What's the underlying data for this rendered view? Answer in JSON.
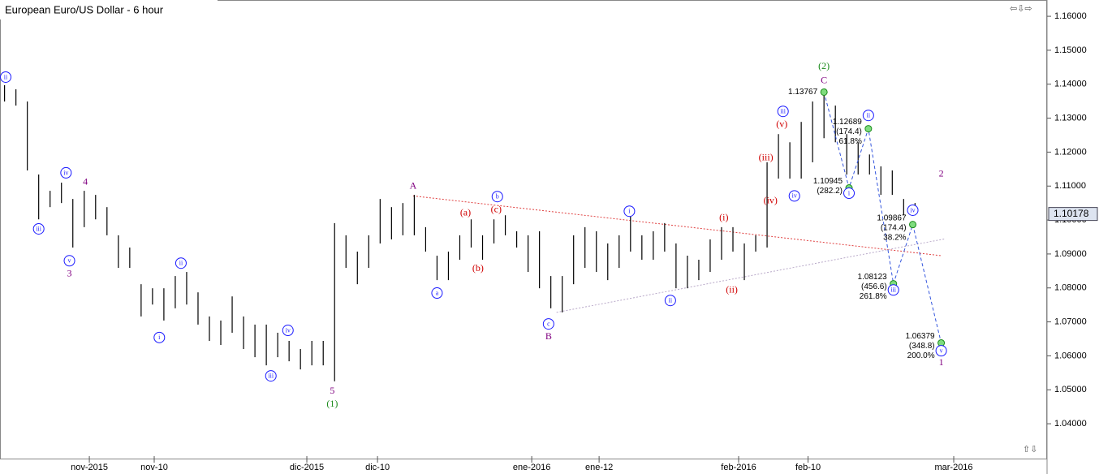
{
  "chart_data": {
    "type": "range_bar",
    "title": "European Euro/US Dollar - 6 hour",
    "color": "#000000",
    "xlim": [
      -0.4,
      91.6
    ],
    "ylim": [
      1.0295,
      1.1648
    ],
    "xticks": [
      {
        "value": 7.45,
        "label": "nov-2015"
      },
      {
        "value": 13.15,
        "label": "nov-10"
      },
      {
        "value": 26.56,
        "label": "dic-2015"
      },
      {
        "value": 32.77,
        "label": "dic-10"
      },
      {
        "value": 46.32,
        "label": "ene-2016"
      },
      {
        "value": 52.24,
        "label": "ene-12"
      },
      {
        "value": 64.5,
        "label": "feb-2016"
      },
      {
        "value": 70.6,
        "label": "feb-10"
      },
      {
        "value": 83.4,
        "label": "mar-2016"
      }
    ],
    "yticks": [
      {
        "value": 1.04,
        "label": "1.04000"
      },
      {
        "value": 1.05,
        "label": "1.05000"
      },
      {
        "value": 1.06,
        "label": "1.06000"
      },
      {
        "value": 1.07,
        "label": "1.07000"
      },
      {
        "value": 1.08,
        "label": "1.08000"
      },
      {
        "value": 1.09,
        "label": "1.09000"
      },
      {
        "value": 1.1,
        "label": "1.10000"
      },
      {
        "value": 1.11,
        "label": "1.11000"
      },
      {
        "value": 1.12,
        "label": "1.12000"
      },
      {
        "value": 1.13,
        "label": "1.13000"
      },
      {
        "value": 1.14,
        "label": "1.14000"
      },
      {
        "value": 1.15,
        "label": "1.15000"
      },
      {
        "value": 1.16,
        "label": "1.16000"
      }
    ],
    "high": [
      1.1397,
      1.1385,
      1.1349,
      1.1134,
      1.1086,
      1.111,
      1.1062,
      1.1086,
      1.1074,
      1.1038,
      1.0955,
      1.0919,
      1.0811,
      1.0799,
      1.0799,
      1.0835,
      1.0847,
      1.0787,
      1.0716,
      1.0704,
      1.0775,
      1.0716,
      1.0692,
      1.0692,
      1.0668,
      1.0644,
      1.062,
      1.0644,
      1.0644,
      1.0991,
      1.0955,
      1.0907,
      1.0955,
      1.1062,
      1.1038,
      1.105,
      1.1074,
      1.0979,
      1.0895,
      1.0907,
      1.0955,
      1.1002,
      1.0955,
      1.1002,
      1.1014,
      1.0967,
      1.0955,
      1.0967,
      1.0835,
      1.0835,
      1.0955,
      1.0979,
      1.0967,
      1.0931,
      1.0955,
      1.1014,
      1.0955,
      1.0967,
      1.0991,
      1.0931,
      1.0895,
      1.0883,
      1.0943,
      1.0979,
      1.0979,
      1.0931,
      1.0955,
      1.117,
      1.1253,
      1.1229,
      1.1289,
      1.1349,
      1.1378,
      1.1337,
      1.1253,
      1.1229,
      1.1193,
      1.1158,
      1.1146,
      1.1062,
      1.105
    ],
    "low": [
      1.1349,
      1.1337,
      1.1146,
      1.1002,
      1.1038,
      1.105,
      1.0919,
      1.0979,
      1.1002,
      1.0955,
      1.0859,
      1.0859,
      1.0716,
      1.0751,
      1.0704,
      1.074,
      1.0751,
      1.0692,
      1.0644,
      1.0632,
      1.0668,
      1.062,
      1.0596,
      1.0572,
      1.0596,
      1.0584,
      1.056,
      1.0572,
      1.0572,
      1.0525,
      1.0859,
      1.0811,
      1.0859,
      1.0931,
      1.0943,
      1.0955,
      1.0955,
      1.0907,
      1.0823,
      1.0823,
      1.0883,
      1.0919,
      1.0883,
      1.0931,
      1.0955,
      1.0919,
      1.0847,
      1.0799,
      1.074,
      1.0728,
      1.0811,
      1.0859,
      1.0847,
      1.0823,
      1.0859,
      1.0907,
      1.0883,
      1.0883,
      1.0907,
      1.0799,
      1.0799,
      1.0823,
      1.0847,
      1.0883,
      1.0907,
      1.0823,
      1.0907,
      1.0919,
      1.1122,
      1.1122,
      1.1122,
      1.117,
      1.1241,
      1.1229,
      1.1134,
      1.1134,
      1.1134,
      1.1074,
      1.1074,
      1.1014,
      1.1014
    ],
    "last_price": 1.10178,
    "annotations": [
      {
        "text": "ii",
        "x": 0.1,
        "y": 1.1421,
        "color": "#1a1aff",
        "circled": true
      },
      {
        "text": "iii",
        "x": 3.0,
        "y": 1.0974,
        "color": "#1a1aff",
        "circled": true
      },
      {
        "text": "iv",
        "x": 5.4,
        "y": 1.1139,
        "color": "#1a1aff",
        "circled": true
      },
      {
        "text": "v",
        "x": 5.7,
        "y": 1.088,
        "color": "#1a1aff",
        "circled": true
      },
      {
        "text": "4",
        "x": 7.1,
        "y": 1.1112,
        "color": "#800080",
        "circled": false
      },
      {
        "text": "3",
        "x": 5.7,
        "y": 1.0842,
        "color": "#800080",
        "circled": false
      },
      {
        "text": "i",
        "x": 13.6,
        "y": 1.0654,
        "color": "#1a1aff",
        "circled": true
      },
      {
        "text": "ii",
        "x": 15.5,
        "y": 1.0873,
        "color": "#1a1aff",
        "circled": true
      },
      {
        "text": "iv",
        "x": 24.9,
        "y": 1.0675,
        "color": "#1a1aff",
        "circled": true
      },
      {
        "text": "iii",
        "x": 23.4,
        "y": 1.0541,
        "color": "#1a1aff",
        "circled": true
      },
      {
        "text": "5",
        "x": 28.8,
        "y": 1.0496,
        "color": "#800080",
        "circled": false
      },
      {
        "text": "(1)",
        "x": 28.8,
        "y": 1.0458,
        "color": "#1a8a1a",
        "circled": false
      },
      {
        "text": "A",
        "x": 35.9,
        "y": 1.11,
        "color": "#800080",
        "circled": false
      },
      {
        "text": "(a)",
        "x": 40.5,
        "y": 1.1021,
        "color": "#d00000",
        "circled": false
      },
      {
        "text": "(c)",
        "x": 43.2,
        "y": 1.1031,
        "color": "#d00000",
        "circled": false
      },
      {
        "text": "b",
        "x": 43.3,
        "y": 1.1069,
        "color": "#1a1aff",
        "circled": true
      },
      {
        "text": "(b)",
        "x": 41.6,
        "y": 1.0857,
        "color": "#d00000",
        "circled": false
      },
      {
        "text": "a",
        "x": 38.0,
        "y": 1.0785,
        "color": "#1a1aff",
        "circled": true
      },
      {
        "text": "c",
        "x": 47.8,
        "y": 1.0694,
        "color": "#1a1aff",
        "circled": true
      },
      {
        "text": "B",
        "x": 47.8,
        "y": 1.0656,
        "color": "#800080",
        "circled": false
      },
      {
        "text": "i",
        "x": 54.9,
        "y": 1.1026,
        "color": "#1a1aff",
        "circled": true
      },
      {
        "text": "ii",
        "x": 58.5,
        "y": 1.0763,
        "color": "#1a1aff",
        "circled": true
      },
      {
        "text": "(i)",
        "x": 63.2,
        "y": 1.1007,
        "color": "#d00000",
        "circled": false
      },
      {
        "text": "(ii)",
        "x": 63.9,
        "y": 1.0794,
        "color": "#d00000",
        "circled": false
      },
      {
        "text": "(iii)",
        "x": 66.9,
        "y": 1.1184,
        "color": "#d00000",
        "circled": false
      },
      {
        "text": "(iv)",
        "x": 67.3,
        "y": 1.1057,
        "color": "#d00000",
        "circled": false
      },
      {
        "text": "(v)",
        "x": 68.3,
        "y": 1.1282,
        "color": "#d00000",
        "circled": false
      },
      {
        "text": "iii",
        "x": 68.4,
        "y": 1.132,
        "color": "#1a1aff",
        "circled": true
      },
      {
        "text": "iv",
        "x": 69.4,
        "y": 1.1071,
        "color": "#1a1aff",
        "circled": true
      },
      {
        "text": "C",
        "x": 72.0,
        "y": 1.1411,
        "color": "#800080",
        "circled": false
      },
      {
        "text": "(2)",
        "x": 72.0,
        "y": 1.1452,
        "color": "#1a8a1a",
        "circled": false
      },
      {
        "text": "i",
        "x": 74.2,
        "y": 1.1079,
        "color": "#1a1aff",
        "circled": true
      },
      {
        "text": "ii",
        "x": 75.9,
        "y": 1.1308,
        "color": "#1a1aff",
        "circled": true
      },
      {
        "text": "iv",
        "x": 79.8,
        "y": 1.1029,
        "color": "#1a1aff",
        "circled": true
      },
      {
        "text": "iii",
        "x": 78.1,
        "y": 1.0794,
        "color": "#1a1aff",
        "circled": true
      },
      {
        "text": "v",
        "x": 82.3,
        "y": 1.0615,
        "color": "#1a1aff",
        "circled": true
      },
      {
        "text": "1",
        "x": 82.3,
        "y": 1.058,
        "color": "#800080",
        "circled": false
      },
      {
        "text": "2",
        "x": 82.3,
        "y": 1.1136,
        "color": "#800080",
        "circled": false
      }
    ],
    "projections": [
      {
        "x": 72.0,
        "price": 1.13767,
        "notes": []
      },
      {
        "x": 74.2,
        "price": 1.10945,
        "notes": [
          "(282.2)"
        ]
      },
      {
        "x": 75.9,
        "price": 1.12689,
        "notes": [
          "(174.4)",
          "61.8%"
        ]
      },
      {
        "x": 78.1,
        "price": 1.08123,
        "notes": [
          "(456.6)",
          "261.8%"
        ]
      },
      {
        "x": 79.8,
        "price": 1.09867,
        "notes": [
          "(174.4)",
          "38.2%"
        ]
      },
      {
        "x": 82.3,
        "price": 1.06379,
        "notes": [
          "(348.8)",
          "200.0%"
        ]
      }
    ],
    "trendlines": [
      {
        "from": [
          35.9,
          1.1071
        ],
        "to": [
          82.3,
          1.0895
        ],
        "color": "#e04040"
      },
      {
        "from": [
          48.5,
          1.0728
        ],
        "to": [
          82.7,
          1.0945
        ],
        "color": "#b8a8c8"
      }
    ]
  }
}
